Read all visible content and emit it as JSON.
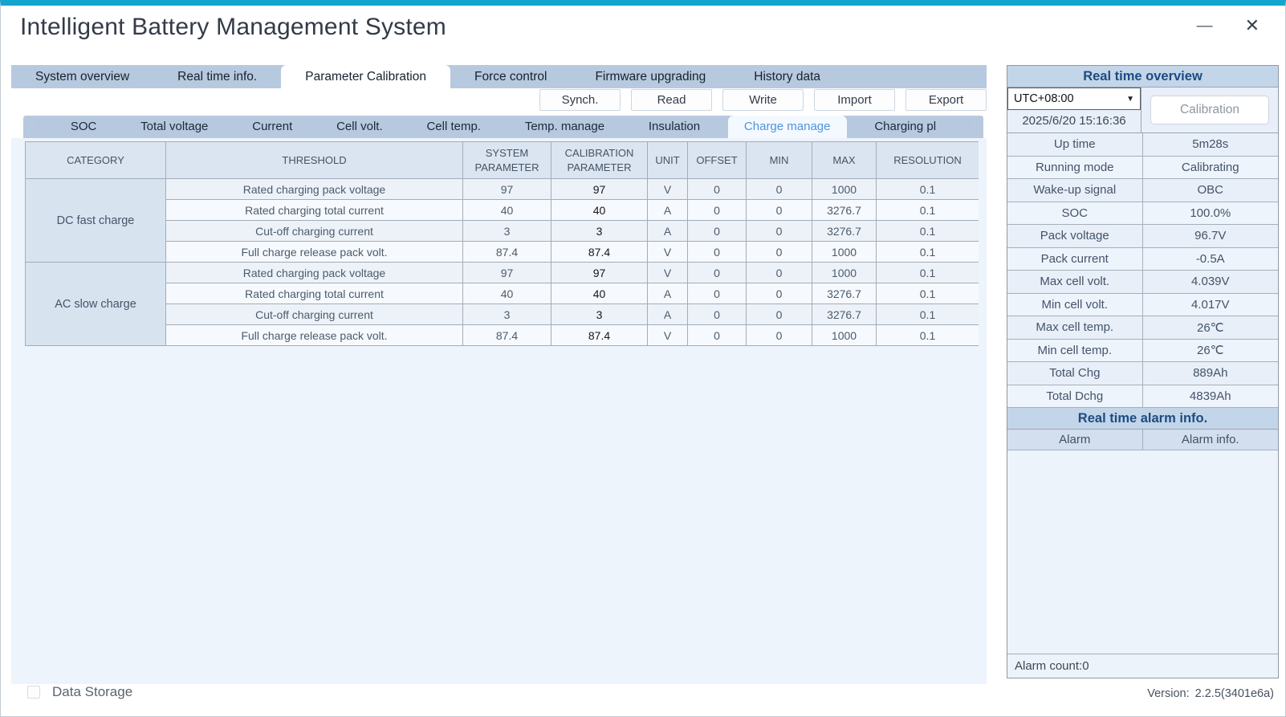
{
  "window": {
    "title": "Intelligent Battery Management System",
    "data_storage_label": "Data Storage",
    "version_label": "Version:",
    "version_value": "2.2.5(3401e6a)"
  },
  "icons": {
    "minimize": "—",
    "close": "✕",
    "dropdown_arrow": "▼",
    "left_arrow": "‹",
    "right_arrow": "›"
  },
  "main_tabs": {
    "items": [
      "System overview",
      "Real time info.",
      "Parameter Calibration",
      "Force control",
      "Firmware upgrading",
      "History data"
    ],
    "active": "Parameter Calibration"
  },
  "toolbar": {
    "buttons": [
      "Synch.",
      "Read",
      "Write",
      "Import",
      "Export"
    ]
  },
  "sub_tabs": {
    "items": [
      "SOC",
      "Total voltage",
      "Current",
      "Cell volt.",
      "Cell temp.",
      "Temp. manage",
      "Insulation",
      "Charge manage",
      "Charging pl"
    ],
    "active": "Charge manage"
  },
  "table": {
    "headers": [
      "CATEGORY",
      "THRESHOLD",
      "SYSTEM PARAMETER",
      "CALIBRATION PARAMETER",
      "UNIT",
      "OFFSET",
      "MIN",
      "MAX",
      "RESOLUTION"
    ],
    "groups": [
      {
        "category": "DC fast charge",
        "rows": [
          {
            "threshold": "Rated charging pack voltage",
            "system": "97",
            "calibration": "97",
            "unit": "V",
            "offset": "0",
            "min": "0",
            "max": "1000",
            "resolution": "0.1"
          },
          {
            "threshold": "Rated charging total current",
            "system": "40",
            "calibration": "40",
            "unit": "A",
            "offset": "0",
            "min": "0",
            "max": "3276.7",
            "resolution": "0.1"
          },
          {
            "threshold": "Cut-off charging current",
            "system": "3",
            "calibration": "3",
            "unit": "A",
            "offset": "0",
            "min": "0",
            "max": "3276.7",
            "resolution": "0.1"
          },
          {
            "threshold": "Full charge release pack volt.",
            "system": "87.4",
            "calibration": "87.4",
            "unit": "V",
            "offset": "0",
            "min": "0",
            "max": "1000",
            "resolution": "0.1"
          }
        ]
      },
      {
        "category": "AC slow charge",
        "rows": [
          {
            "threshold": "Rated charging pack voltage",
            "system": "97",
            "calibration": "97",
            "unit": "V",
            "offset": "0",
            "min": "0",
            "max": "1000",
            "resolution": "0.1"
          },
          {
            "threshold": "Rated charging total current",
            "system": "40",
            "calibration": "40",
            "unit": "A",
            "offset": "0",
            "min": "0",
            "max": "3276.7",
            "resolution": "0.1"
          },
          {
            "threshold": "Cut-off charging current",
            "system": "3",
            "calibration": "3",
            "unit": "A",
            "offset": "0",
            "min": "0",
            "max": "3276.7",
            "resolution": "0.1"
          },
          {
            "threshold": "Full charge release pack volt.",
            "system": "87.4",
            "calibration": "87.4",
            "unit": "V",
            "offset": "0",
            "min": "0",
            "max": "1000",
            "resolution": "0.1"
          }
        ]
      }
    ]
  },
  "right_panel": {
    "overview_title": "Real time overview",
    "timezone": "UTC+08:00",
    "timestamp": "2025/6/20 15:16:36",
    "calibration_button": "Calibration",
    "info_rows": [
      {
        "label": "Up time",
        "value": "5m28s"
      },
      {
        "label": "Running mode",
        "value": "Calibrating"
      },
      {
        "label": "Wake-up signal",
        "value": "OBC"
      },
      {
        "label": "SOC",
        "value": "100.0%"
      },
      {
        "label": "Pack voltage",
        "value": "96.7V"
      },
      {
        "label": "Pack current",
        "value": "-0.5A"
      },
      {
        "label": "Max cell volt.",
        "value": "4.039V"
      },
      {
        "label": "Min cell volt.",
        "value": "4.017V"
      },
      {
        "label": "Max cell temp.",
        "value": "26℃"
      },
      {
        "label": "Min cell temp.",
        "value": "26℃"
      },
      {
        "label": "Total Chg",
        "value": "889Ah"
      },
      {
        "label": "Total Dchg",
        "value": "4839Ah"
      }
    ],
    "alarm_title": "Real time alarm info.",
    "alarm_headers": [
      "Alarm",
      "Alarm info."
    ],
    "alarm_count_label": "Alarm count:0"
  },
  "colors": {
    "accent_cyan": "#14a5cd",
    "tab_strip": "#b7c9df",
    "active_subtab_text": "#4f93dd",
    "table_header_bg": "#dbe5f1",
    "category_bg": "#d8e3f0",
    "panel_header_bg": "#c3d5e9",
    "panel_title_text": "#1e4b80"
  }
}
